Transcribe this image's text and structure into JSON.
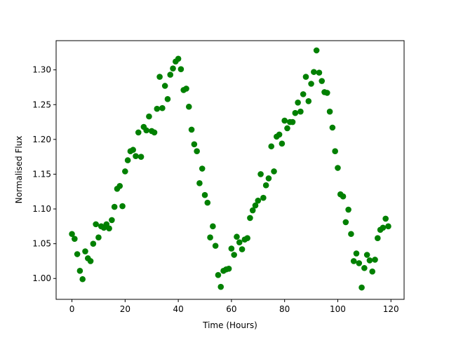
{
  "chart_data": {
    "type": "scatter",
    "title": "",
    "xlabel": "Time (Hours)",
    "ylabel": "Normalised Flux",
    "xlim": [
      -5.95,
      124.95
    ],
    "ylim": [
      0.97,
      1.342
    ],
    "xticks": [
      0,
      20,
      40,
      60,
      80,
      100,
      120
    ],
    "yticks": [
      1.0,
      1.05,
      1.1,
      1.15,
      1.2,
      1.25,
      1.3
    ],
    "ytick_labels": [
      "1.00",
      "1.05",
      "1.10",
      "1.15",
      "1.20",
      "1.25",
      "1.30"
    ],
    "grid": false,
    "legend": "none",
    "marker_color": "#008000",
    "series": [
      {
        "x": [
          0,
          1,
          2,
          3,
          4,
          5,
          6,
          7,
          8,
          9,
          10,
          11,
          12,
          13,
          14,
          15,
          16,
          17,
          18,
          19,
          20,
          21,
          22,
          23,
          24,
          25,
          26,
          27,
          28,
          29,
          30,
          31,
          32,
          33,
          34,
          35,
          36,
          37,
          38,
          39,
          40,
          41,
          42,
          43,
          44,
          45,
          46,
          47,
          48,
          49,
          50,
          51,
          52,
          53,
          54,
          55,
          56,
          57,
          58,
          59,
          60,
          61,
          62,
          63,
          64,
          65,
          66,
          67,
          68,
          69,
          70,
          71,
          72,
          73,
          74,
          75,
          76,
          77,
          78,
          79,
          80,
          81,
          82,
          83,
          84,
          85,
          86,
          87,
          88,
          89,
          90,
          91,
          92,
          93,
          94,
          95,
          96,
          97,
          98,
          99,
          100,
          101,
          102,
          103,
          104,
          105,
          106,
          107,
          108,
          109,
          110,
          111,
          112,
          113,
          114,
          115,
          116,
          117,
          118,
          119
        ],
        "y": [
          1.064,
          1.057,
          1.035,
          1.011,
          0.999,
          1.039,
          1.029,
          1.025,
          1.05,
          1.078,
          1.059,
          1.075,
          1.073,
          1.078,
          1.072,
          1.084,
          1.103,
          1.129,
          1.133,
          1.104,
          1.154,
          1.17,
          1.183,
          1.185,
          1.176,
          1.21,
          1.175,
          1.218,
          1.213,
          1.233,
          1.212,
          1.21,
          1.244,
          1.29,
          1.245,
          1.277,
          1.258,
          1.293,
          1.302,
          1.312,
          1.316,
          1.301,
          1.271,
          1.273,
          1.247,
          1.214,
          1.193,
          1.183,
          1.137,
          1.158,
          1.12,
          1.109,
          1.059,
          1.075,
          1.047,
          1.005,
          0.988,
          1.011,
          1.013,
          1.014,
          1.043,
          1.034,
          1.06,
          1.052,
          1.042,
          1.056,
          1.058,
          1.087,
          1.098,
          1.105,
          1.112,
          1.15,
          1.116,
          1.134,
          1.144,
          1.19,
          1.154,
          1.204,
          1.207,
          1.194,
          1.227,
          1.216,
          1.225,
          1.225,
          1.238,
          1.253,
          1.24,
          1.265,
          1.29,
          1.255,
          1.28,
          1.297,
          1.328,
          1.296,
          1.284,
          1.268,
          1.267,
          1.24,
          1.217,
          1.183,
          1.159,
          1.121,
          1.118,
          1.081,
          1.099,
          1.064,
          1.025,
          1.036,
          1.022,
          0.987,
          1.015,
          1.034,
          1.026,
          1.01,
          1.027,
          1.058,
          1.07,
          1.073,
          1.086,
          1.075
        ]
      }
    ]
  }
}
